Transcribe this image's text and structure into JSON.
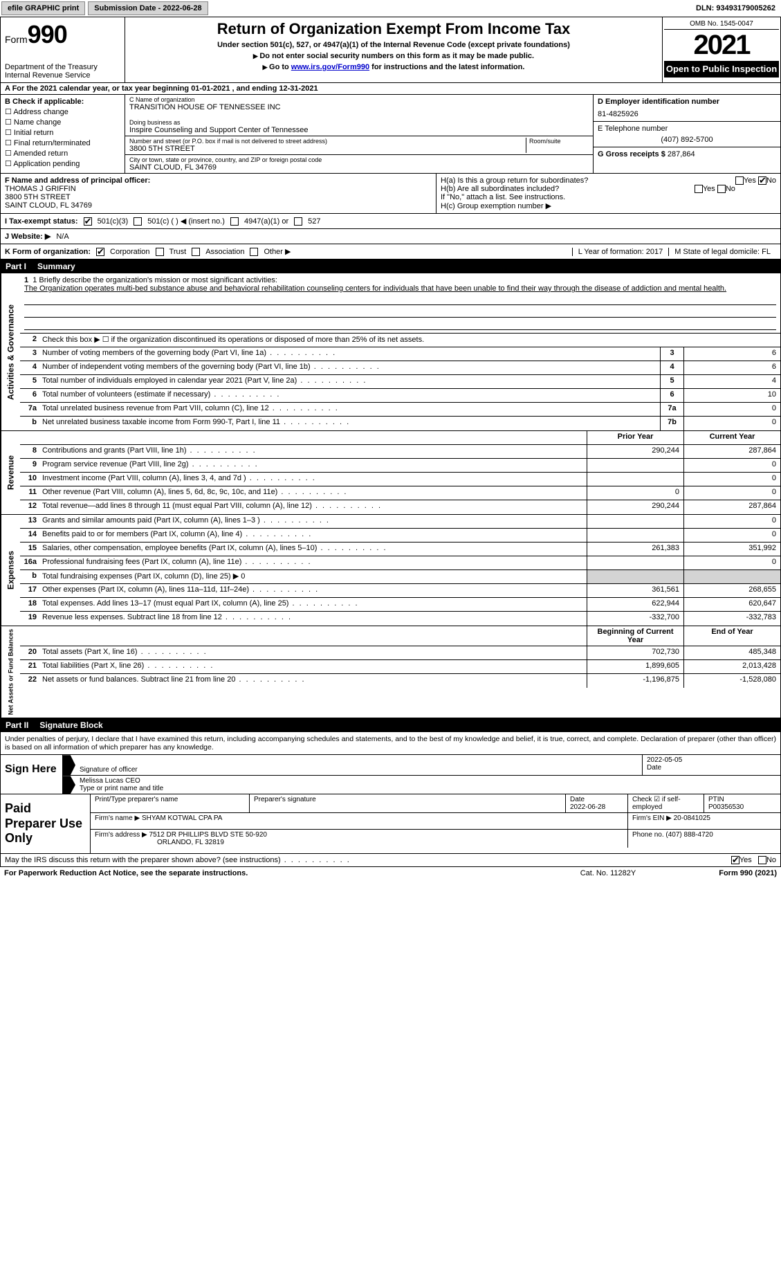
{
  "colors": {
    "bg": "#ffffff",
    "text": "#000000",
    "header_bg": "#000000",
    "header_fg": "#ffffff",
    "grey": "#d4d4d4",
    "link": "#0000cc"
  },
  "topbar": {
    "efile": "efile GRAPHIC print",
    "submission": "Submission Date - 2022-06-28",
    "dln": "DLN: 93493179005262"
  },
  "header": {
    "form_prefix": "Form",
    "form_no": "990",
    "dept": "Department of the Treasury",
    "irs": "Internal Revenue Service",
    "title": "Return of Organization Exempt From Income Tax",
    "subtitle": "Under section 501(c), 527, or 4947(a)(1) of the Internal Revenue Code (except private foundations)",
    "ssn_line": "Do not enter social security numbers on this form as it may be made public.",
    "goto_prefix": "Go to ",
    "goto_link": "www.irs.gov/Form990",
    "goto_suffix": " for instructions and the latest information.",
    "omb": "OMB No. 1545-0047",
    "year": "2021",
    "opi": "Open to Public Inspection"
  },
  "row_a": {
    "text": "A For the 2021 calendar year, or tax year beginning 01-01-2021    , and ending 12-31-2021"
  },
  "section_b": {
    "label": "B Check if applicable:",
    "items": [
      "Address change",
      "Name change",
      "Initial return",
      "Final return/terminated",
      "Amended return",
      "Application pending"
    ]
  },
  "section_c": {
    "name_lbl": "C Name of organization",
    "name": "TRANSITION HOUSE OF TENNESSEE INC",
    "dba_lbl": "Doing business as",
    "dba": "Inspire Counseling and Support Center of Tennessee",
    "street_lbl": "Number and street (or P.O. box if mail is not delivered to street address)",
    "room_lbl": "Room/suite",
    "street": "3800 5TH STREET",
    "city_lbl": "City or town, state or province, country, and ZIP or foreign postal code",
    "city": "SAINT CLOUD, FL  34769"
  },
  "section_d": {
    "ein_lbl": "D Employer identification number",
    "ein": "81-4825926",
    "phone_lbl": "E Telephone number",
    "phone": "(407) 892-5700",
    "gross_lbl": "G Gross receipts $",
    "gross": "287,864"
  },
  "section_f": {
    "lbl": "F Name and address of principal officer:",
    "name": "THOMAS J GRIFFIN",
    "street": "3800 5TH STREET",
    "city": "SAINT CLOUD, FL  34769"
  },
  "section_h": {
    "a": "H(a)  Is this a group return for subordinates?",
    "b": "H(b)  Are all subordinates included?",
    "no_note": "If \"No,\" attach a list. See instructions.",
    "c": "H(c)  Group exemption number ▶",
    "yes": "Yes",
    "no": "No"
  },
  "tax_status": {
    "lbl": "I  Tax-exempt status:",
    "opt1": "501(c)(3)",
    "opt2": "501(c) (  ) ◀ (insert no.)",
    "opt3": "4947(a)(1) or",
    "opt4": "527"
  },
  "website": {
    "lbl": "J  Website: ▶",
    "val": "N/A"
  },
  "k_org": {
    "lbl": "K Form of organization:",
    "opts": [
      "Corporation",
      "Trust",
      "Association",
      "Other ▶"
    ],
    "l": "L Year of formation: 2017",
    "m": "M State of legal domicile: FL"
  },
  "parts": {
    "p1": "Part I",
    "p1_title": "Summary",
    "p2": "Part II",
    "p2_title": "Signature Block"
  },
  "vtabs": {
    "act": "Activities & Governance",
    "rev": "Revenue",
    "exp": "Expenses",
    "net": "Net Assets or Fund Balances"
  },
  "mission": {
    "lbl": "1   Briefly describe the organization's mission or most significant activities:",
    "text": "The Organization operates multi-bed substance abuse and behavioral rehabilitation counseling centers for individuals that have been unable to find their way through the disease of addiction and mental health."
  },
  "line2": "Check this box ▶ ☐  if the organization discontinued its operations or disposed of more than 25% of its net assets.",
  "summary_lines": [
    {
      "n": "3",
      "d": "Number of voting members of the governing body (Part VI, line 1a)",
      "b": "3",
      "v": "6"
    },
    {
      "n": "4",
      "d": "Number of independent voting members of the governing body (Part VI, line 1b)",
      "b": "4",
      "v": "6"
    },
    {
      "n": "5",
      "d": "Total number of individuals employed in calendar year 2021 (Part V, line 2a)",
      "b": "5",
      "v": "4"
    },
    {
      "n": "6",
      "d": "Total number of volunteers (estimate if necessary)",
      "b": "6",
      "v": "10"
    },
    {
      "n": "7a",
      "d": "Total unrelated business revenue from Part VIII, column (C), line 12",
      "b": "7a",
      "v": "0"
    },
    {
      "n": "b",
      "d": "Net unrelated business taxable income from Form 990-T, Part I, line 11",
      "b": "7b",
      "v": "0"
    }
  ],
  "col_headers": {
    "prior": "Prior Year",
    "current": "Current Year",
    "boy": "Beginning of Current Year",
    "eoy": "End of Year"
  },
  "revenue": [
    {
      "n": "8",
      "d": "Contributions and grants (Part VIII, line 1h)",
      "p": "290,244",
      "c": "287,864"
    },
    {
      "n": "9",
      "d": "Program service revenue (Part VIII, line 2g)",
      "p": "",
      "c": "0"
    },
    {
      "n": "10",
      "d": "Investment income (Part VIII, column (A), lines 3, 4, and 7d )",
      "p": "",
      "c": "0"
    },
    {
      "n": "11",
      "d": "Other revenue (Part VIII, column (A), lines 5, 6d, 8c, 9c, 10c, and 11e)",
      "p": "0",
      "c": "0"
    },
    {
      "n": "12",
      "d": "Total revenue—add lines 8 through 11 (must equal Part VIII, column (A), line 12)",
      "p": "290,244",
      "c": "287,864"
    }
  ],
  "expenses": [
    {
      "n": "13",
      "d": "Grants and similar amounts paid (Part IX, column (A), lines 1–3 )",
      "p": "",
      "c": "0"
    },
    {
      "n": "14",
      "d": "Benefits paid to or for members (Part IX, column (A), line 4)",
      "p": "",
      "c": "0"
    },
    {
      "n": "15",
      "d": "Salaries, other compensation, employee benefits (Part IX, column (A), lines 5–10)",
      "p": "261,383",
      "c": "351,992"
    },
    {
      "n": "16a",
      "d": "Professional fundraising fees (Part IX, column (A), line 11e)",
      "p": "",
      "c": "0"
    },
    {
      "n": "b",
      "d": "Total fundraising expenses (Part IX, column (D), line 25) ▶ 0",
      "shaded": true
    },
    {
      "n": "17",
      "d": "Other expenses (Part IX, column (A), lines 11a–11d, 11f–24e)",
      "p": "361,561",
      "c": "268,655"
    },
    {
      "n": "18",
      "d": "Total expenses. Add lines 13–17 (must equal Part IX, column (A), line 25)",
      "p": "622,944",
      "c": "620,647"
    },
    {
      "n": "19",
      "d": "Revenue less expenses. Subtract line 18 from line 12",
      "p": "-332,700",
      "c": "-332,783"
    }
  ],
  "netassets": [
    {
      "n": "20",
      "d": "Total assets (Part X, line 16)",
      "p": "702,730",
      "c": "485,348"
    },
    {
      "n": "21",
      "d": "Total liabilities (Part X, line 26)",
      "p": "1,899,605",
      "c": "2,013,428"
    },
    {
      "n": "22",
      "d": "Net assets or fund balances. Subtract line 21 from line 20",
      "p": "-1,196,875",
      "c": "-1,528,080"
    }
  ],
  "sig_intro": "Under penalties of perjury, I declare that I have examined this return, including accompanying schedules and statements, and to the best of my knowledge and belief, it is true, correct, and complete. Declaration of preparer (other than officer) is based on all information of which preparer has any knowledge.",
  "sign": {
    "here": "Sign Here",
    "sig_lbl": "Signature of officer",
    "date_lbl": "Date",
    "date_val": "2022-05-05",
    "name": "Melissa Lucas  CEO",
    "name_lbl": "Type or print name and title"
  },
  "preparer": {
    "title": "Paid Preparer Use Only",
    "print_lbl": "Print/Type preparer's name",
    "sig_lbl": "Preparer's signature",
    "date_lbl": "Date",
    "date": "2022-06-28",
    "check_lbl": "Check ☑ if self-employed",
    "ptin_lbl": "PTIN",
    "ptin": "P00356530",
    "firm_name_lbl": "Firm's name    ▶",
    "firm_name": "SHYAM KOTWAL CPA PA",
    "firm_ein_lbl": "Firm's EIN ▶",
    "firm_ein": "20-0841025",
    "firm_addr_lbl": "Firm's address ▶",
    "firm_addr1": "7512 DR PHILLIPS BLVD STE 50-920",
    "firm_addr2": "ORLANDO, FL  32819",
    "firm_phone_lbl": "Phone no.",
    "firm_phone": "(407) 888-4720"
  },
  "footer": {
    "discuss": "May the IRS discuss this return with the preparer shown above? (see instructions)",
    "yes": "Yes",
    "no": "No",
    "paperwork": "For Paperwork Reduction Act Notice, see the separate instructions.",
    "cat": "Cat. No. 11282Y",
    "formref": "Form 990 (2021)"
  }
}
